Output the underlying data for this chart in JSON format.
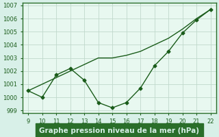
{
  "x": [
    9,
    10,
    11,
    12,
    13,
    14,
    15,
    16,
    17,
    18,
    19,
    20,
    21,
    22
  ],
  "y_markers": [
    1000.5,
    1000.0,
    1001.7,
    1002.2,
    1001.3,
    999.6,
    999.2,
    999.6,
    1000.7,
    1002.4,
    1003.5,
    1004.9,
    1005.9,
    1006.7
  ],
  "y_smooth": [
    1000.5,
    1001.0,
    1001.5,
    1002.0,
    1002.5,
    1003.0,
    1003.0,
    1003.2,
    1003.5,
    1004.0,
    1004.5,
    1005.2,
    1006.0,
    1006.7
  ],
  "line_color": "#1a5c1a",
  "marker": "D",
  "marker_size": 2.5,
  "line_width": 1.0,
  "xlabel": "Graphe pression niveau de la mer (hPa)",
  "xlabel_fontsize": 7.5,
  "xlabel_color": "#1a5c1a",
  "ylim_min": 998.8,
  "ylim_max": 1007.2,
  "yticks": [
    999,
    1000,
    1001,
    1002,
    1003,
    1004,
    1005,
    1006,
    1007
  ],
  "xticks": [
    9,
    10,
    11,
    12,
    13,
    14,
    15,
    16,
    17,
    18,
    19,
    20,
    21,
    22
  ],
  "grid_color": "#c0d8cc",
  "grid_color_minor": "#e0ece6",
  "bg_color": "#d8f0e8",
  "plot_bg": "#e8f8f0",
  "border_color": "#2a6e2a",
  "tick_fontsize": 6.0,
  "tick_color": "#1a5c1a",
  "xlabel_area_color": "#2a6e2a",
  "xlabel_text_color": "#d8f0e8"
}
